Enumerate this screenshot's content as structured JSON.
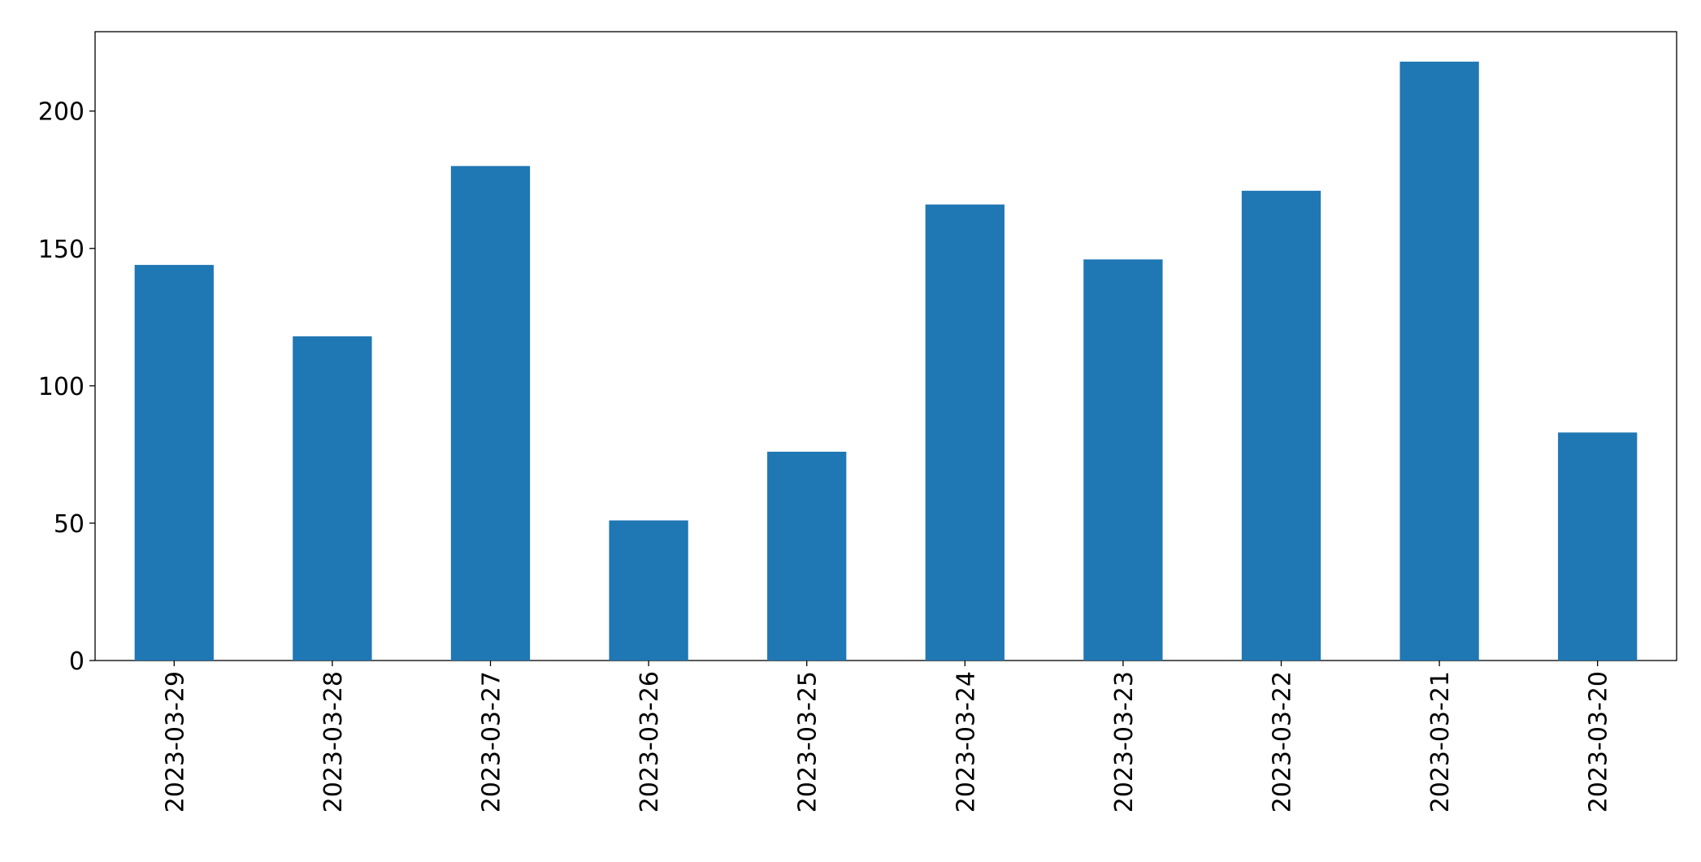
{
  "chart_data": {
    "type": "bar",
    "categories": [
      "2023-03-29",
      "2023-03-28",
      "2023-03-27",
      "2023-03-26",
      "2023-03-25",
      "2023-03-24",
      "2023-03-23",
      "2023-03-22",
      "2023-03-21",
      "2023-03-20"
    ],
    "values": [
      144,
      118,
      180,
      51,
      76,
      166,
      146,
      171,
      218,
      83
    ],
    "color": "#1f77b4",
    "ylim": [
      0,
      228.9
    ],
    "yticks": [
      0,
      50,
      100,
      150,
      200
    ],
    "grid": false
  }
}
